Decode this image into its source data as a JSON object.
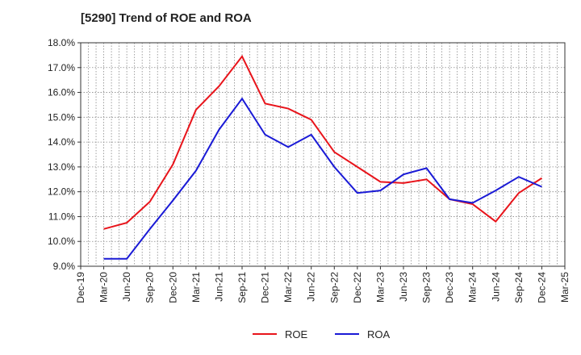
{
  "colors": {
    "roe": "#e8141b",
    "roa": "#1a1ad6",
    "grid": "#888888",
    "axis": "#333333",
    "text": "#222222"
  },
  "chart_data": {
    "type": "line",
    "title": "[5290]  Trend of ROE and ROA",
    "xlabel": "",
    "ylabel": "",
    "ylim": [
      9.0,
      18.0
    ],
    "y_ticks": [
      9.0,
      10.0,
      11.0,
      12.0,
      13.0,
      14.0,
      15.0,
      16.0,
      17.0,
      18.0
    ],
    "y_tick_labels": [
      "9.0%",
      "10.0%",
      "11.0%",
      "12.0%",
      "13.0%",
      "14.0%",
      "15.0%",
      "16.0%",
      "17.0%",
      "18.0%"
    ],
    "x_tick_labels": [
      "Dec-19",
      "Mar-20",
      "Jun-20",
      "Sep-20",
      "Dec-20",
      "Mar-21",
      "Jun-21",
      "Sep-21",
      "Dec-21",
      "Mar-22",
      "Jun-22",
      "Sep-22",
      "Dec-22",
      "Mar-23",
      "Jun-23",
      "Sep-23",
      "Dec-23",
      "Mar-24",
      "Jun-24",
      "Sep-24",
      "Dec-24",
      "Mar-25"
    ],
    "grid": true,
    "legend_position": "bottom-center",
    "x": [
      "Mar-20",
      "Jun-20",
      "Sep-20",
      "Dec-20",
      "Mar-21",
      "Jun-21",
      "Sep-21",
      "Dec-21",
      "Mar-22",
      "Jun-22",
      "Sep-22",
      "Dec-22",
      "Mar-23",
      "Jun-23",
      "Sep-23",
      "Dec-23",
      "Mar-24",
      "Jun-24",
      "Sep-24",
      "Dec-24"
    ],
    "series": [
      {
        "name": "ROE",
        "color": "#e8141b",
        "values": [
          10.5,
          10.75,
          11.6,
          13.1,
          15.3,
          16.25,
          17.45,
          15.55,
          15.35,
          14.9,
          13.6,
          13.0,
          12.4,
          12.35,
          12.5,
          11.7,
          11.5,
          10.8,
          11.95,
          12.55
        ]
      },
      {
        "name": "ROA",
        "color": "#1a1ad6",
        "values": [
          9.3,
          9.3,
          10.5,
          11.65,
          12.85,
          14.5,
          15.75,
          14.3,
          13.8,
          14.3,
          13.0,
          11.95,
          12.05,
          12.7,
          12.95,
          11.7,
          11.55,
          12.05,
          12.6,
          12.2
        ]
      }
    ]
  }
}
